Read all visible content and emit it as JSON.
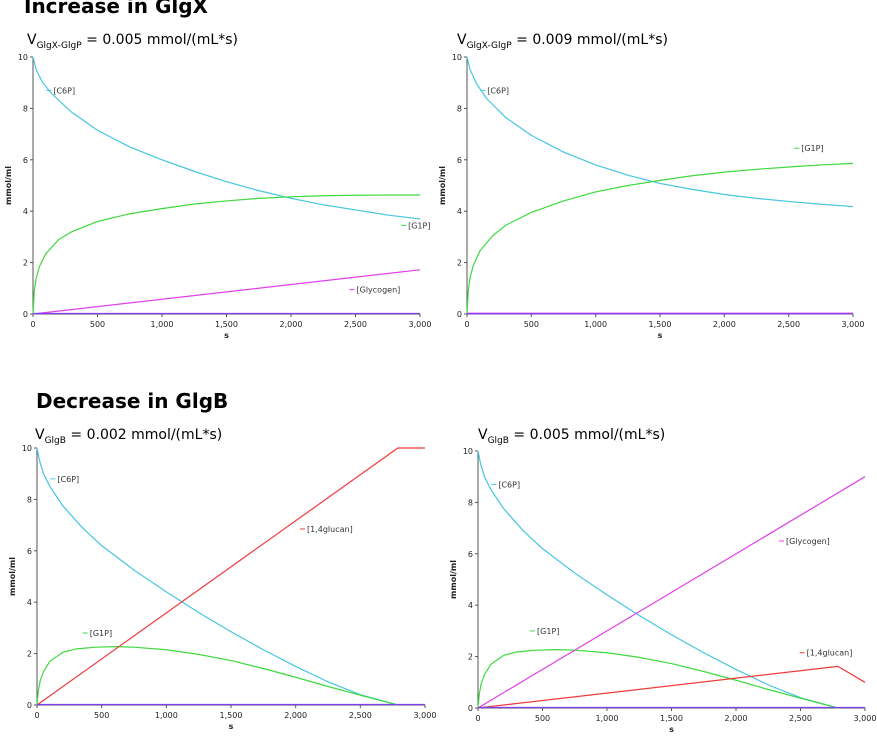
{
  "sections": [
    {
      "title": "Increase in GlgX"
    },
    {
      "title": "Decrease in GlgB"
    }
  ],
  "colors": {
    "G6P": "#45c6e0",
    "G1P": "#3ed93e",
    "Glycogen": "#e040e8",
    "1,4glucan": "#ee3a3a",
    "baseline": "#7b3ff0",
    "axis": "#555555"
  },
  "chart_data": [
    {
      "type": "line",
      "section": "Increase in GlgX",
      "subtitle": {
        "prefix": "V",
        "sub": "GlgX-GlgP",
        "suffix": " = 0.005 mmol/(mL*s)"
      },
      "xlabel": "s",
      "ylabel": "mmol/ml",
      "xlim": [
        0,
        3000
      ],
      "ylim": [
        0,
        10
      ],
      "xticks": [
        0,
        500,
        1000,
        1500,
        2000,
        2500,
        3000
      ],
      "xtick_labels": [
        "0",
        "500",
        "1,000",
        "1,500",
        "2,000",
        "2,500",
        "3,000"
      ],
      "yticks": [
        0,
        2,
        4,
        6,
        8,
        10
      ],
      "ytick_labels": [
        "0",
        "2",
        "4",
        "6",
        "8",
        "10"
      ],
      "series": [
        {
          "name": "[C6P]",
          "color_key": "G6P",
          "x": [
            0,
            25,
            75,
            150,
            300,
            500,
            750,
            1000,
            1250,
            1500,
            1750,
            2000,
            2250,
            2500,
            2750,
            3000
          ],
          "y": [
            10,
            9.5,
            9.0,
            8.55,
            7.85,
            7.15,
            6.5,
            6.0,
            5.55,
            5.15,
            4.8,
            4.5,
            4.25,
            4.05,
            3.85,
            3.7
          ]
        },
        {
          "name": "[G1P]",
          "color_key": "G1P",
          "x": [
            0,
            10,
            25,
            50,
            100,
            200,
            300,
            500,
            750,
            1000,
            1250,
            1500,
            1750,
            2000,
            2250,
            2500,
            2750,
            3000
          ],
          "y": [
            0,
            0.9,
            1.4,
            1.85,
            2.35,
            2.9,
            3.2,
            3.6,
            3.9,
            4.1,
            4.28,
            4.4,
            4.5,
            4.56,
            4.6,
            4.62,
            4.63,
            4.63
          ]
        },
        {
          "name": "[Glycogen]",
          "color_key": "Glycogen",
          "x": [
            0,
            3000
          ],
          "y": [
            0,
            1.72
          ]
        },
        {
          "name": "",
          "color_key": "baseline",
          "x": [
            0,
            3000
          ],
          "y": [
            0.02,
            0.02
          ]
        }
      ],
      "labels": [
        {
          "text": "[C6P]",
          "x": 150,
          "y": 8.7,
          "color_key": "G6P"
        },
        {
          "text": "[G1P]",
          "x": 2900,
          "y": 3.45,
          "color_key": "G1P"
        },
        {
          "text": "[Glycogen]",
          "x": 2500,
          "y": 0.95,
          "color_key": "Glycogen"
        }
      ]
    },
    {
      "type": "line",
      "section": "Increase in GlgX",
      "subtitle": {
        "prefix": "V",
        "sub": "GlgX-GlgP",
        "suffix": " = 0.009 mmol/(mL*s)"
      },
      "xlabel": "s",
      "ylabel": "mmol/ml",
      "xlim": [
        0,
        3000
      ],
      "ylim": [
        0,
        10
      ],
      "xticks": [
        0,
        500,
        1000,
        1500,
        2000,
        2500,
        3000
      ],
      "xtick_labels": [
        "0",
        "500",
        "1,000",
        "1,500",
        "2,000",
        "2,500",
        "3,000"
      ],
      "yticks": [
        0,
        2,
        4,
        6,
        8,
        10
      ],
      "ytick_labels": [
        "0",
        "2",
        "4",
        "6",
        "8",
        "10"
      ],
      "series": [
        {
          "name": "[C6P]",
          "color_key": "G6P",
          "x": [
            0,
            25,
            75,
            150,
            300,
            500,
            750,
            1000,
            1250,
            1500,
            1750,
            2000,
            2250,
            2500,
            2750,
            3000
          ],
          "y": [
            10,
            9.5,
            8.95,
            8.4,
            7.65,
            6.95,
            6.3,
            5.8,
            5.4,
            5.08,
            4.85,
            4.65,
            4.5,
            4.38,
            4.27,
            4.18
          ]
        },
        {
          "name": "[G1P]",
          "color_key": "G1P",
          "x": [
            0,
            10,
            25,
            50,
            100,
            200,
            300,
            500,
            750,
            1000,
            1250,
            1500,
            1750,
            2000,
            2250,
            2500,
            2750,
            3000
          ],
          "y": [
            0,
            0.9,
            1.45,
            1.9,
            2.45,
            3.05,
            3.45,
            3.95,
            4.4,
            4.75,
            5.0,
            5.2,
            5.38,
            5.52,
            5.63,
            5.72,
            5.8,
            5.86
          ]
        },
        {
          "name": "",
          "color_key": "Glycogen",
          "x": [
            0,
            3000
          ],
          "y": [
            0.03,
            0.03
          ]
        },
        {
          "name": "",
          "color_key": "baseline",
          "x": [
            0,
            3000
          ],
          "y": [
            0.01,
            0.01
          ]
        }
      ],
      "labels": [
        {
          "text": "[C6P]",
          "x": 150,
          "y": 8.7,
          "color_key": "G6P"
        },
        {
          "text": "[G1P]",
          "x": 2590,
          "y": 6.45,
          "color_key": "G1P"
        }
      ]
    },
    {
      "type": "line",
      "section": "Decrease in GlgB",
      "subtitle": {
        "prefix": "V",
        "sub": "GlgB",
        "suffix": " = 0.002 mmol/(mL*s)"
      },
      "xlabel": "s",
      "ylabel": "mmol/ml",
      "xlim": [
        0,
        3000
      ],
      "ylim": [
        0,
        10
      ],
      "xticks": [
        0,
        500,
        1000,
        1500,
        2000,
        2500,
        3000
      ],
      "xtick_labels": [
        "0",
        "500",
        "1,000",
        "1,500",
        "2,000",
        "2,500",
        "3,000"
      ],
      "yticks": [
        0,
        2,
        4,
        6,
        8,
        10
      ],
      "ytick_labels": [
        "0",
        "2",
        "4",
        "6",
        "8",
        "10"
      ],
      "series": [
        {
          "name": "[C6P]",
          "color_key": "G6P",
          "x": [
            0,
            20,
            50,
            100,
            200,
            350,
            500,
            750,
            1000,
            1250,
            1500,
            1750,
            2000,
            2250,
            2500,
            2790
          ],
          "y": [
            10,
            9.5,
            9.0,
            8.5,
            7.75,
            6.9,
            6.2,
            5.25,
            4.4,
            3.6,
            2.85,
            2.15,
            1.5,
            0.9,
            0.4,
            0
          ]
        },
        {
          "name": "[G1P]",
          "color_key": "G1P",
          "x": [
            0,
            10,
            25,
            50,
            100,
            200,
            300,
            450,
            600,
            750,
            1000,
            1250,
            1500,
            1750,
            2000,
            2250,
            2500,
            2790
          ],
          "y": [
            0,
            0.55,
            0.95,
            1.3,
            1.7,
            2.05,
            2.18,
            2.25,
            2.27,
            2.25,
            2.15,
            1.97,
            1.73,
            1.42,
            1.08,
            0.72,
            0.38,
            0
          ]
        },
        {
          "name": "[1,4glucan]",
          "color_key": "1,4glucan",
          "x": [
            0,
            2790,
            3000
          ],
          "y": [
            0,
            10,
            10
          ]
        },
        {
          "name": "",
          "color_key": "baseline",
          "x": [
            0,
            3000
          ],
          "y": [
            0.02,
            0.02
          ]
        }
      ],
      "labels": [
        {
          "text": "[C6P]",
          "x": 150,
          "y": 8.8,
          "color_key": "G6P"
        },
        {
          "text": "[1,4glucan]",
          "x": 2080,
          "y": 6.85,
          "color_key": "1,4glucan"
        },
        {
          "text": "[G1P]",
          "x": 400,
          "y": 2.8,
          "color_key": "G1P"
        }
      ]
    },
    {
      "type": "line",
      "section": "Decrease in GlgB",
      "subtitle": {
        "prefix": "V",
        "sub": "GlgB",
        "suffix": " = 0.005 mmol/(mL*s)"
      },
      "xlabel": "s",
      "ylabel": "mmol/ml",
      "xlim": [
        0,
        3000
      ],
      "ylim": [
        0,
        10
      ],
      "xticks": [
        0,
        500,
        1000,
        1500,
        2000,
        2500,
        3000
      ],
      "xtick_labels": [
        "0",
        "500",
        "1,000",
        "1,500",
        "2,000",
        "2,500",
        "3,000"
      ],
      "yticks": [
        0,
        2,
        4,
        6,
        8,
        10
      ],
      "ytick_labels": [
        "0",
        "2",
        "4",
        "6",
        "8",
        "10"
      ],
      "series": [
        {
          "name": "[C6P]",
          "color_key": "G6P",
          "x": [
            0,
            20,
            50,
            100,
            200,
            350,
            500,
            750,
            1000,
            1250,
            1500,
            1750,
            2000,
            2250,
            2500,
            2790
          ],
          "y": [
            10,
            9.5,
            9.0,
            8.5,
            7.75,
            6.9,
            6.2,
            5.25,
            4.4,
            3.6,
            2.85,
            2.15,
            1.5,
            0.9,
            0.4,
            0
          ]
        },
        {
          "name": "[G1P]",
          "color_key": "G1P",
          "x": [
            0,
            10,
            25,
            50,
            100,
            200,
            300,
            450,
            600,
            750,
            1000,
            1250,
            1500,
            1750,
            2000,
            2250,
            2500,
            2790
          ],
          "y": [
            0,
            0.55,
            0.95,
            1.3,
            1.7,
            2.05,
            2.18,
            2.25,
            2.27,
            2.25,
            2.15,
            1.97,
            1.73,
            1.42,
            1.08,
            0.72,
            0.38,
            0
          ]
        },
        {
          "name": "[Glycogen]",
          "color_key": "Glycogen",
          "x": [
            0,
            3000
          ],
          "y": [
            0,
            9.0
          ]
        },
        {
          "name": "[1,4glucan]",
          "color_key": "1,4glucan",
          "x": [
            0,
            2790,
            3000
          ],
          "y": [
            0,
            1.62,
            1.0
          ]
        },
        {
          "name": "",
          "color_key": "baseline",
          "x": [
            0,
            3000
          ],
          "y": [
            0.02,
            0.02
          ]
        }
      ],
      "labels": [
        {
          "text": "[C6P]",
          "x": 150,
          "y": 8.7,
          "color_key": "G6P"
        },
        {
          "text": "[Glycogen]",
          "x": 2380,
          "y": 6.5,
          "color_key": "Glycogen"
        },
        {
          "text": "[G1P]",
          "x": 450,
          "y": 3.0,
          "color_key": "G1P"
        },
        {
          "text": "[1,4glucan]",
          "x": 2540,
          "y": 2.15,
          "color_key": "1,4glucan"
        }
      ]
    }
  ]
}
